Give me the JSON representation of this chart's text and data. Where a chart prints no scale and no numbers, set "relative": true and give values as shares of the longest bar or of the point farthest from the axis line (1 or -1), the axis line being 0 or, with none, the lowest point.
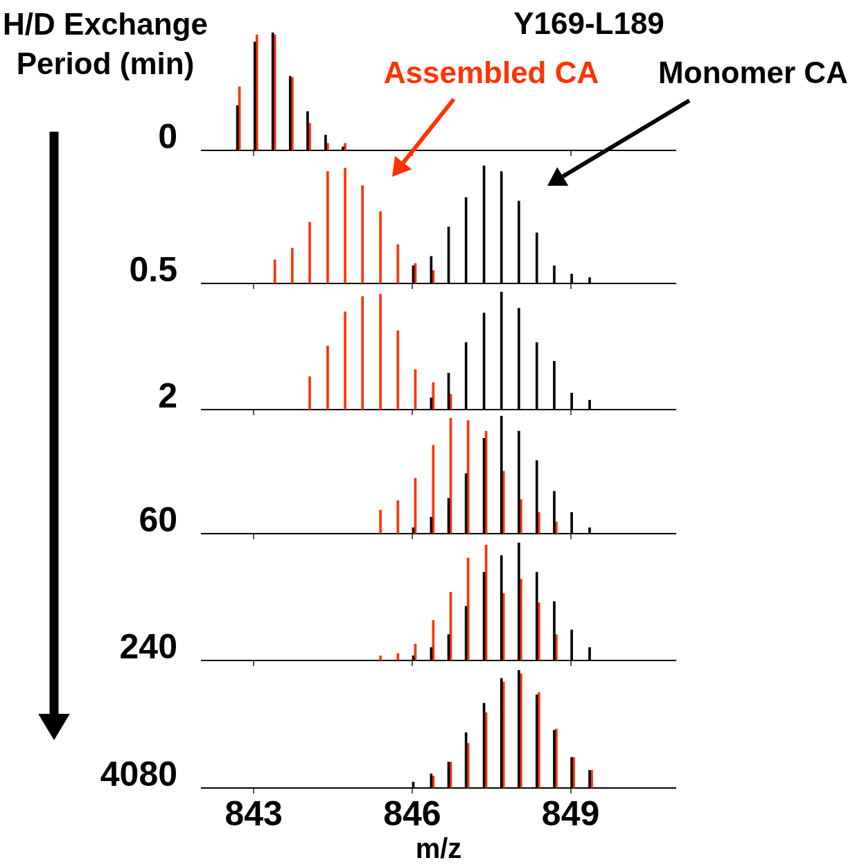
{
  "chart_data": [
    {
      "type": "bar",
      "title": "Y169-L189",
      "ylabel": "0",
      "relative": true,
      "annotations": [
        "H/D Exchange Period (min)"
      ],
      "xlim": [
        842,
        851
      ],
      "xticks": [
        843,
        846,
        849
      ],
      "tick_labels": false,
      "series": [
        {
          "color": "#ff3300",
          "x": [
            842.71,
            843.04,
            843.38,
            843.71,
            844.04,
            844.38,
            844.71
          ],
          "values": [
            0.54,
            0.98,
            0.98,
            0.62,
            0.23,
            0.06,
            0.06
          ]
        },
        {
          "color": "#000000",
          "x": [
            842.71,
            843.04,
            843.38,
            843.71,
            844.04,
            844.38,
            844.71
          ],
          "values": [
            0.38,
            0.92,
            1,
            0.63,
            0.33,
            0.13,
            0.03
          ]
        }
      ]
    },
    {
      "type": "bar",
      "ylabel": "0.5",
      "relative": true,
      "xlim": [
        842,
        851
      ],
      "xticks": [
        843,
        846,
        849
      ],
      "tick_labels": false,
      "series": [
        {
          "name": "Assembled CA",
          "color": "#ff3300",
          "x": [
            843.38,
            843.71,
            844.04,
            844.38,
            844.71,
            845.04,
            845.38,
            845.71,
            846.04,
            846.38
          ],
          "values": [
            0.2,
            0.3,
            0.52,
            0.95,
            0.98,
            0.83,
            0.61,
            0.33,
            0.17,
            0.11
          ]
        },
        {
          "name": "Monomer CA",
          "color": "#000000",
          "x": [
            846.04,
            846.38,
            846.71,
            847.04,
            847.38,
            847.71,
            848.04,
            848.38,
            848.71,
            849.04,
            849.38
          ],
          "values": [
            0.15,
            0.23,
            0.48,
            0.73,
            1,
            0.95,
            0.7,
            0.43,
            0.15,
            0.08,
            0.05
          ]
        }
      ]
    },
    {
      "type": "bar",
      "ylabel": "2",
      "relative": true,
      "xlim": [
        842,
        851
      ],
      "xticks": [
        843,
        846,
        849
      ],
      "tick_labels": false,
      "series": [
        {
          "color": "#ff3300",
          "x": [
            844.04,
            844.38,
            844.71,
            845.04,
            845.38,
            845.71,
            846.04,
            846.38,
            846.71
          ],
          "values": [
            0.28,
            0.54,
            0.83,
            0.96,
            0.98,
            0.67,
            0.34,
            0.23,
            0.13
          ]
        },
        {
          "color": "#000000",
          "x": [
            846.38,
            846.71,
            847.04,
            847.38,
            847.71,
            848.04,
            848.38,
            848.71,
            849.04,
            849.38
          ],
          "values": [
            0.1,
            0.31,
            0.57,
            0.82,
            1,
            0.86,
            0.57,
            0.41,
            0.14,
            0.08
          ]
        }
      ]
    },
    {
      "type": "bar",
      "ylabel": "60",
      "relative": true,
      "xlim": [
        842,
        851
      ],
      "xticks": [
        843,
        846,
        849
      ],
      "tick_labels": false,
      "series": [
        {
          "color": "#ff3300",
          "x": [
            845.38,
            845.71,
            846.04,
            846.38,
            846.71,
            847.04,
            847.38,
            847.71,
            848.04,
            848.38,
            848.71
          ],
          "values": [
            0.2,
            0.28,
            0.47,
            0.75,
            0.98,
            0.96,
            0.87,
            0.53,
            0.29,
            0.18,
            0.1
          ]
        },
        {
          "color": "#000000",
          "x": [
            846.04,
            846.38,
            846.71,
            847.04,
            847.38,
            847.71,
            848.04,
            848.38,
            848.71,
            849.04,
            849.38
          ],
          "values": [
            0.05,
            0.14,
            0.3,
            0.51,
            0.81,
            1,
            0.87,
            0.62,
            0.36,
            0.18,
            0.05
          ]
        }
      ]
    },
    {
      "type": "bar",
      "ylabel": "240",
      "relative": true,
      "xlim": [
        842,
        851
      ],
      "xticks": [
        843,
        846,
        849
      ],
      "tick_labels": false,
      "series": [
        {
          "color": "#ff3300",
          "x": [
            845.38,
            845.71,
            846.04,
            846.38,
            846.71,
            847.04,
            847.38,
            847.71,
            848.04,
            848.38,
            848.71
          ],
          "values": [
            0.04,
            0.06,
            0.14,
            0.34,
            0.58,
            0.87,
            0.98,
            0.57,
            0.69,
            0.49,
            0.22
          ]
        },
        {
          "color": "#000000",
          "x": [
            846.04,
            846.38,
            846.71,
            847.04,
            847.38,
            847.71,
            848.04,
            848.38,
            848.71,
            849.04,
            849.38
          ],
          "values": [
            0.04,
            0.11,
            0.22,
            0.46,
            0.75,
            0.89,
            1,
            0.75,
            0.5,
            0.26,
            0.11
          ]
        }
      ]
    },
    {
      "type": "bar",
      "ylabel": "4080",
      "xlabel": "m/z",
      "relative": true,
      "xlim": [
        842,
        851
      ],
      "xticks": [
        843,
        846,
        849
      ],
      "series": [
        {
          "color": "#ff3300",
          "x": [
            846.38,
            846.71,
            847.04,
            847.38,
            847.71,
            848.04,
            848.38,
            848.71,
            849.04,
            849.38
          ],
          "values": [
            0.1,
            0.22,
            0.38,
            0.64,
            0.9,
            0.97,
            0.81,
            0.5,
            0.26,
            0.15
          ]
        },
        {
          "color": "#000000",
          "x": [
            846.04,
            846.38,
            846.71,
            847.04,
            847.38,
            847.71,
            848.04,
            848.38,
            848.71,
            849.04,
            849.38
          ],
          "values": [
            0.05,
            0.12,
            0.22,
            0.47,
            0.72,
            0.93,
            1,
            0.79,
            0.49,
            0.26,
            0.15
          ]
        }
      ]
    }
  ]
}
